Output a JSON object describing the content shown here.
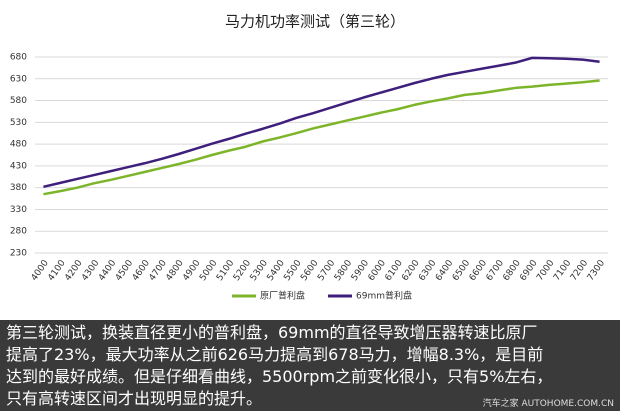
{
  "chart_data": {
    "type": "line",
    "title": "马力机功率测试（第三轮）",
    "categories": [
      "4000",
      "4100",
      "4200",
      "4300",
      "4400",
      "4500",
      "4600",
      "4700",
      "4800",
      "4900",
      "5000",
      "5100",
      "5200",
      "5300",
      "5400",
      "5500",
      "5600",
      "5700",
      "5800",
      "5900",
      "6000",
      "6100",
      "6200",
      "6300",
      "6400",
      "6500",
      "6600",
      "6700",
      "6800",
      "6900",
      "7000",
      "7100",
      "7200",
      "7300"
    ],
    "series": [
      {
        "name": "原厂普利盘",
        "color": "#7db52a",
        "values": [
          365,
          372,
          380,
          390,
          398,
          407,
          416,
          425,
          434,
          444,
          455,
          465,
          474,
          486,
          495,
          505,
          516,
          525,
          534,
          543,
          552,
          560,
          570,
          578,
          585,
          593,
          597,
          603,
          609,
          612,
          616,
          619,
          622,
          626
        ]
      },
      {
        "name": "69mm普利盘",
        "color": "#3f1f7c",
        "values": [
          382,
          391,
          400,
          409,
          418,
          427,
          436,
          446,
          457,
          469,
          481,
          492,
          504,
          515,
          527,
          540,
          551,
          563,
          575,
          587,
          598,
          609,
          620,
          630,
          639,
          646,
          653,
          660,
          667,
          678,
          677,
          676,
          674,
          669
        ]
      }
    ],
    "ylim": [
      230,
      680
    ],
    "yticks": [
      230,
      280,
      330,
      380,
      430,
      480,
      530,
      580,
      630,
      680
    ],
    "grid": true,
    "legend": "bottom"
  },
  "caption": {
    "lines": [
      "第三轮测试，换装直径更小的普利盘，69mm的直径导致增压器转速比原厂",
      "提高了23%，最大功率从之前626马力提高到678马力，增幅8.3%，是目前",
      "达到的最好成绩。但是仔细看曲线，5500rpm之前变化很小，只有5%左右，",
      "只有高转速区间才出现明显的提升。"
    ],
    "watermark": "汽车之家 AUTOHOME.COM.CN"
  }
}
